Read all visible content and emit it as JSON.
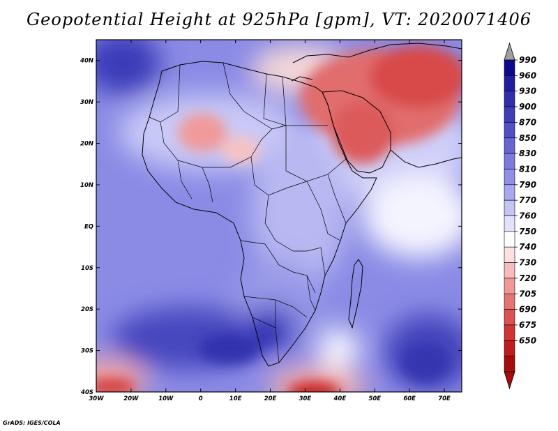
{
  "title": "Geopotential Height at 925hPa [gpm], VT: 2020071406",
  "footer": "GrADS: IGES/COLA",
  "map": {
    "lon_range": [
      -30,
      75
    ],
    "lat_range": [
      -40,
      45
    ],
    "x_ticks": [
      {
        "value": -30,
        "label": "30W"
      },
      {
        "value": -20,
        "label": "20W"
      },
      {
        "value": -10,
        "label": "10W"
      },
      {
        "value": 0,
        "label": "0"
      },
      {
        "value": 10,
        "label": "10E"
      },
      {
        "value": 20,
        "label": "20E"
      },
      {
        "value": 30,
        "label": "30E"
      },
      {
        "value": 40,
        "label": "40E"
      },
      {
        "value": 50,
        "label": "50E"
      },
      {
        "value": 60,
        "label": "60E"
      },
      {
        "value": 70,
        "label": "70E"
      }
    ],
    "y_ticks": [
      {
        "value": 40,
        "label": "40N"
      },
      {
        "value": 30,
        "label": "30N"
      },
      {
        "value": 20,
        "label": "20N"
      },
      {
        "value": 10,
        "label": "10N"
      },
      {
        "value": 0,
        "label": "EQ"
      },
      {
        "value": -10,
        "label": "10S"
      },
      {
        "value": -20,
        "label": "20S"
      },
      {
        "value": -30,
        "label": "30S"
      },
      {
        "value": -40,
        "label": "40S"
      }
    ]
  },
  "colorbar": {
    "levels": [
      "990",
      "960",
      "930",
      "900",
      "870",
      "850",
      "830",
      "810",
      "790",
      "770",
      "760",
      "750",
      "740",
      "730",
      "720",
      "705",
      "690",
      "675",
      "650"
    ],
    "colors": [
      "#0a0a8c",
      "#1e1e9e",
      "#2f2fae",
      "#3e3eba",
      "#5050c8",
      "#6565d4",
      "#7b7bdc",
      "#9090e4",
      "#a8a8ee",
      "#c4c4f6",
      "#e2e2fc",
      "#ffffff",
      "#fde0e0",
      "#f8bcbc",
      "#f09898",
      "#e67474",
      "#dc5252",
      "#d03434",
      "#c01e1e",
      "#a80c0c"
    ],
    "top_arrow_color": "#a0a0a0",
    "bottom_arrow_color": "#a80c0c"
  }
}
